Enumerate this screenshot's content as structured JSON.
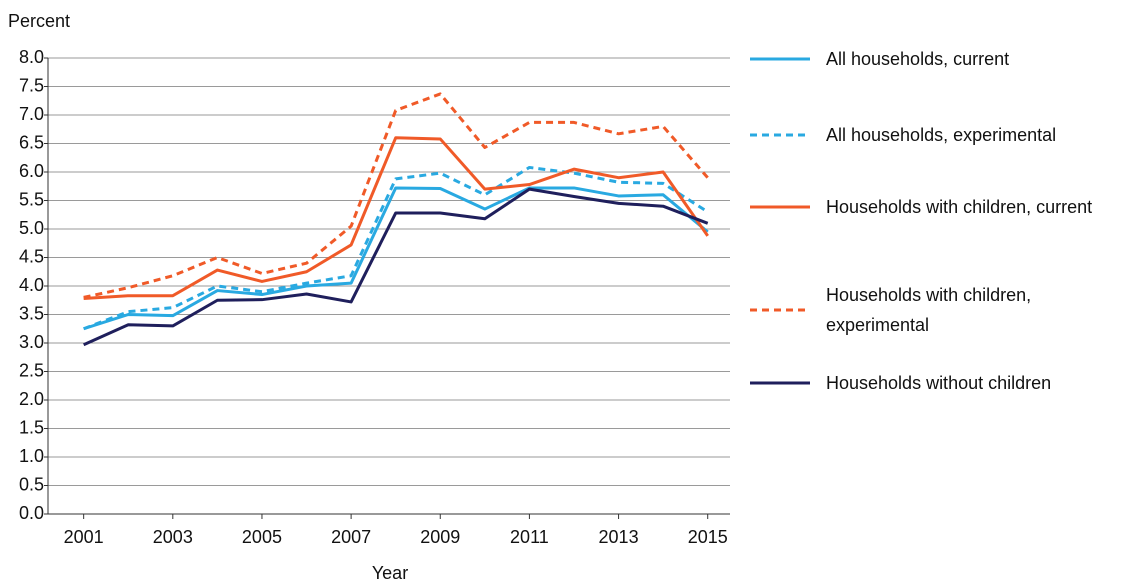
{
  "chart_data": {
    "type": "line",
    "y_label": "Percent",
    "x_label": "Year",
    "x": [
      2001,
      2002,
      2003,
      2004,
      2005,
      2006,
      2007,
      2008,
      2009,
      2010,
      2011,
      2012,
      2013,
      2014,
      2015
    ],
    "xlim": [
      2000.2,
      2015.5
    ],
    "xticks": [
      2001,
      2003,
      2005,
      2007,
      2009,
      2011,
      2013,
      2015
    ],
    "ylim": [
      0,
      8
    ],
    "yticks": [
      {
        "value": 0,
        "label": "0.0"
      },
      {
        "value": 0.5,
        "label": "0.5"
      },
      {
        "value": 1,
        "label": "1.0"
      },
      {
        "value": 1.5,
        "label": "1.5"
      },
      {
        "value": 2,
        "label": "2.0"
      },
      {
        "value": 2.5,
        "label": "2.5"
      },
      {
        "value": 3,
        "label": "3.0"
      },
      {
        "value": 3.5,
        "label": "3.5"
      },
      {
        "value": 4,
        "label": "4.0"
      },
      {
        "value": 4.5,
        "label": "4.5"
      },
      {
        "value": 5,
        "label": "5.0"
      },
      {
        "value": 5.5,
        "label": "5.5"
      },
      {
        "value": 6,
        "label": "6.0"
      },
      {
        "value": 6.5,
        "label": "6.5"
      },
      {
        "value": 7,
        "label": "7.0"
      },
      {
        "value": 7.5,
        "label": "7.5"
      },
      {
        "value": 8,
        "label": "8.0"
      }
    ],
    "grid": true,
    "legend": "right",
    "series": [
      {
        "name": "All households, current",
        "color": "#29a9e1",
        "dashed": false,
        "values": [
          3.25,
          3.5,
          3.48,
          3.92,
          3.85,
          4.0,
          4.05,
          5.72,
          5.71,
          5.35,
          5.72,
          5.72,
          5.58,
          5.6,
          4.95
        ]
      },
      {
        "name": "All households, experimental",
        "color": "#29a9e1",
        "dashed": true,
        "values": [
          3.25,
          3.55,
          3.62,
          4.0,
          3.9,
          4.05,
          4.18,
          5.88,
          5.98,
          5.6,
          6.08,
          5.98,
          5.82,
          5.8,
          5.3
        ]
      },
      {
        "name": "Households with children, current",
        "color": "#f05a28",
        "dashed": false,
        "values": [
          3.78,
          3.83,
          3.83,
          4.28,
          4.08,
          4.25,
          4.72,
          6.6,
          6.58,
          5.7,
          5.78,
          6.05,
          5.9,
          6.0,
          4.88
        ]
      },
      {
        "name": "Households with children, experimental",
        "color": "#f05a28",
        "dashed": true,
        "values": [
          3.8,
          3.97,
          4.18,
          4.5,
          4.22,
          4.4,
          5.05,
          7.08,
          7.37,
          6.43,
          6.87,
          6.87,
          6.67,
          6.8,
          5.9
        ]
      },
      {
        "name": "Households without children",
        "color": "#1f1f5c",
        "dashed": false,
        "values": [
          2.97,
          3.32,
          3.3,
          3.75,
          3.76,
          3.86,
          3.72,
          5.28,
          5.28,
          5.18,
          5.7,
          5.57,
          5.45,
          5.4,
          5.1
        ]
      }
    ]
  }
}
